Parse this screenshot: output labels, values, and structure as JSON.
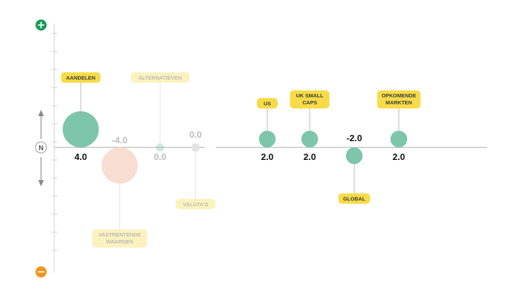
{
  "chart_data": {
    "type": "bubble",
    "scale": {
      "positive_icon": "plus-icon",
      "negative_icon": "minus-icon",
      "neutral_label": "N"
    },
    "colors": {
      "positive": "#7dc5ab",
      "negative": "#f8ddd3",
      "neutral": "#e2e2e2",
      "label_bg": "#f7dc48",
      "plus": "#1a9c5a",
      "minus": "#f7941d"
    },
    "points": [
      {
        "label": "AANDELEN",
        "value": 4.0,
        "value_label": "4.0",
        "faded": false,
        "label_side": "above"
      },
      {
        "label": "VASTRENTENDE WAARDEN",
        "value": -4.0,
        "value_label": "-4.0",
        "faded": true,
        "label_side": "below"
      },
      {
        "label": "ALTERNATIEVEN",
        "value": 0.0,
        "value_label": "0.0",
        "faded": true,
        "label_side": "above"
      },
      {
        "label": "VALUTA'S",
        "value": 0.0,
        "value_label": "0.0",
        "faded": true,
        "label_side": "below"
      },
      {
        "label": "US",
        "value": 2.0,
        "value_label": "2.0",
        "faded": false,
        "label_side": "above"
      },
      {
        "label": "UK SMALL CAPS",
        "value": 2.0,
        "value_label": "2.0",
        "faded": false,
        "label_side": "above"
      },
      {
        "label": "GLOBAL",
        "value": -2.0,
        "value_label": "-2.0",
        "faded": false,
        "label_side": "below"
      },
      {
        "label": "OPKOMENDE MARKTEN",
        "value": 2.0,
        "value_label": "2.0",
        "faded": false,
        "label_side": "above"
      }
    ]
  }
}
